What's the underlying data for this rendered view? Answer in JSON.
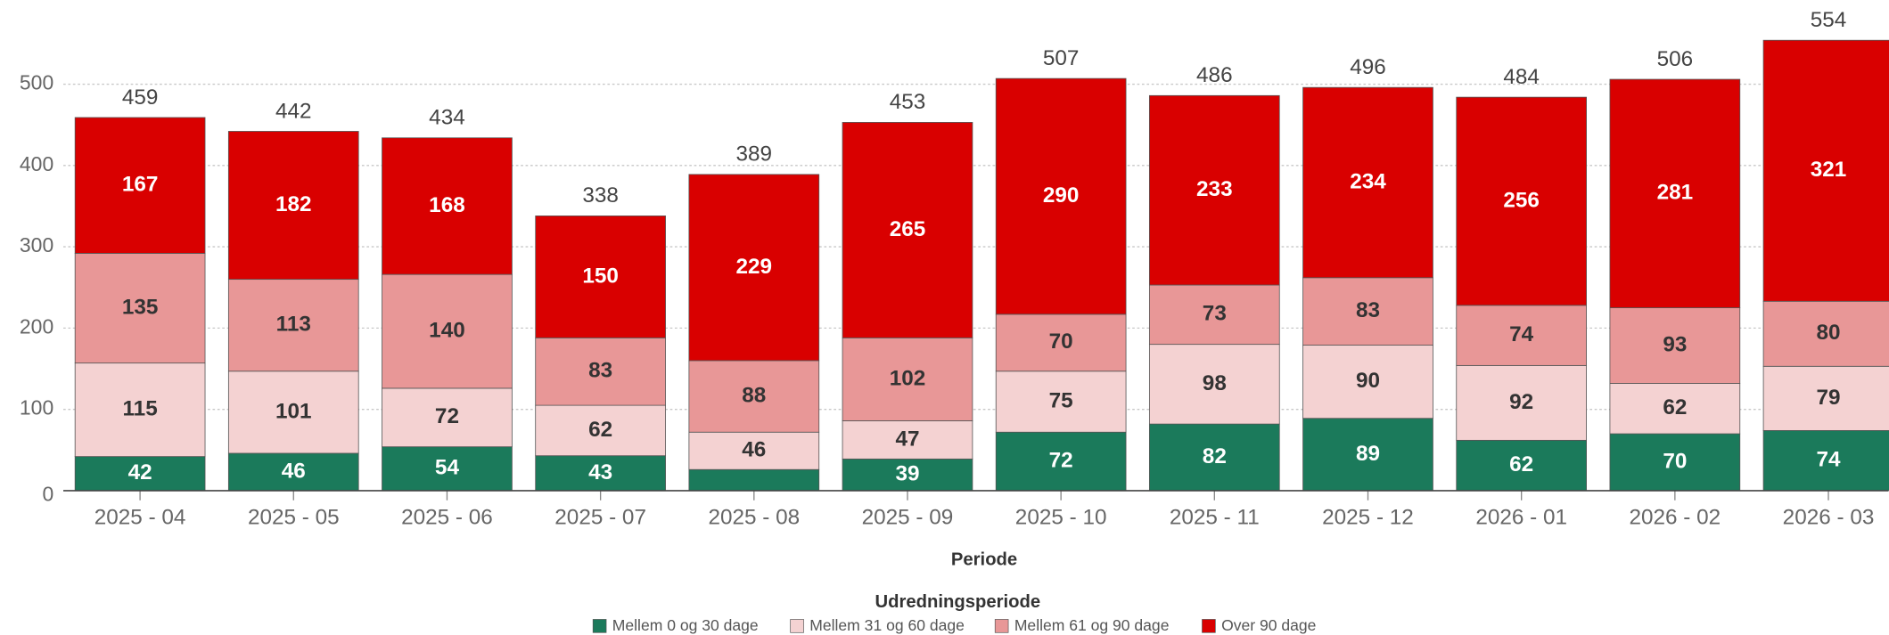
{
  "chart_data": {
    "type": "stacked-bar",
    "x_label": "Periode",
    "legend_title": "Udredningsperiode",
    "categories": [
      "2025 - 04",
      "2025 - 05",
      "2025 - 06",
      "2025 - 07",
      "2025 - 08",
      "2025 - 09",
      "2025 - 10",
      "2025 - 11",
      "2025 - 12",
      "2026 - 01",
      "2026 - 02",
      "2026 - 03"
    ],
    "series": [
      {
        "name": "Mellem 0 og 30 dage",
        "color": "#1b7a5b",
        "label_color": "#ffffff",
        "values": [
          42,
          46,
          54,
          43,
          26,
          39,
          72,
          82,
          89,
          62,
          70,
          74
        ]
      },
      {
        "name": "Mellem 31 og 60 dage",
        "color": "#f4d2d2",
        "label_color": "#333333",
        "values": [
          115,
          101,
          72,
          62,
          46,
          47,
          75,
          98,
          90,
          92,
          62,
          79
        ]
      },
      {
        "name": "Mellem 61 og 90 dage",
        "color": "#e89797",
        "label_color": "#333333",
        "values": [
          135,
          113,
          140,
          83,
          88,
          102,
          70,
          73,
          83,
          74,
          93,
          80
        ]
      },
      {
        "name": "Over 90 dage",
        "color": "#d90000",
        "label_color": "#ffffff",
        "values": [
          167,
          182,
          168,
          150,
          229,
          265,
          290,
          233,
          234,
          256,
          281,
          321
        ]
      }
    ],
    "totals": [
      459,
      442,
      434,
      338,
      389,
      453,
      507,
      486,
      496,
      484,
      506,
      554
    ],
    "ylim": [
      0,
      600
    ],
    "yticks": [
      0,
      100,
      200,
      300,
      400,
      500
    ],
    "grid": true
  }
}
